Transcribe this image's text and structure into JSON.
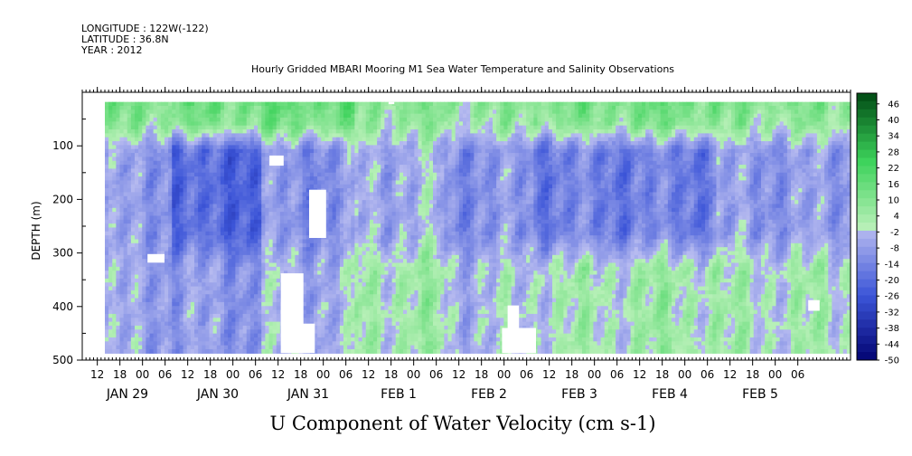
{
  "header": {
    "longitude": "LONGITUDE : 122W(-122)",
    "latitude": "LATITUDE : 36.8N",
    "year": "YEAR : 2012",
    "title": "Hourly Gridded MBARI Mooring M1 Sea Water Temperature and Salinity Observations"
  },
  "chart_data": {
    "type": "heatmap",
    "title": "Hourly Gridded MBARI Mooring M1 Sea Water Temperature and Salinity Observations",
    "xlabel": "U Component of Water Velocity (cm s-1)",
    "ylabel": "DEPTH (m)",
    "x_range_hours": [
      0,
      204
    ],
    "y_range": [
      500,
      0
    ],
    "y_ticks": [
      100,
      200,
      300,
      400,
      500
    ],
    "x_hour_ticks": [
      "12",
      "18",
      "00",
      "06",
      "12",
      "18",
      "00",
      "06",
      "12",
      "18",
      "00",
      "06",
      "12",
      "18",
      "00",
      "06",
      "12",
      "18",
      "00",
      "06",
      "12",
      "18",
      "00",
      "06",
      "12",
      "18",
      "00",
      "06",
      "12",
      "18",
      "00",
      "06"
    ],
    "x_date_labels": [
      "JAN 29",
      "JAN 30",
      "JAN 31",
      "FEB 1",
      "FEB 2",
      "FEB 3",
      "FEB 4",
      "FEB 5"
    ],
    "colorbar_labels": [
      "46",
      "40",
      "34",
      "28",
      "22",
      "16",
      "10",
      "4",
      "-2",
      "-8",
      "-14",
      "-20",
      "-26",
      "-32",
      "-38",
      "-44",
      "-50"
    ],
    "colorbar_range": [
      -50,
      50
    ],
    "colorbar_step": 3,
    "colormap": {
      "neg_dark": "#00006e",
      "neg_mid": "#3c55d8",
      "neg_light": "#b8bcf0",
      "pos_light": "#b8f0b8",
      "pos_mid": "#3cd25a",
      "pos_dark": "#004a14"
    },
    "bands": [
      {
        "period": "JAN 29 12-18",
        "near_surface": 8,
        "mid": -8,
        "deep": -6
      },
      {
        "period": "JAN 30",
        "near_surface": 10,
        "mid": -20,
        "deep": -8
      },
      {
        "period": "JAN 31",
        "near_surface": 12,
        "mid": -10,
        "deep": -4
      },
      {
        "period": "FEB 1",
        "near_surface": 6,
        "mid": -4,
        "deep": 4
      },
      {
        "period": "FEB 2",
        "near_surface": 4,
        "mid": -10,
        "deep": -2
      },
      {
        "period": "FEB 3",
        "near_surface": 8,
        "mid": -14,
        "deep": 2
      },
      {
        "period": "FEB 4",
        "near_surface": 10,
        "mid": -14,
        "deep": 4
      },
      {
        "period": "FEB 5",
        "near_surface": 6,
        "mid": -8,
        "deep": 2
      }
    ],
    "grid": false,
    "legend": "right colorbar"
  }
}
